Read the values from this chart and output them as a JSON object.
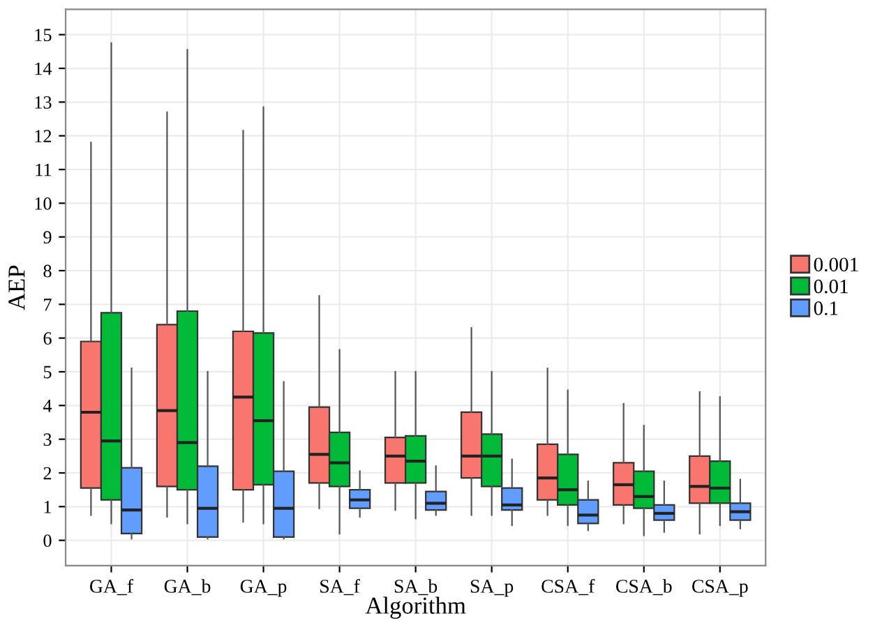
{
  "chart_data": {
    "type": "box",
    "xlabel": "Algorithm",
    "ylabel": "AEP",
    "categories": [
      "GA_f",
      "GA_b",
      "GA_p",
      "SA_f",
      "SA_b",
      "SA_p",
      "CSA_f",
      "CSA_b",
      "CSA_p"
    ],
    "ylim": [
      -0.75,
      15.75
    ],
    "yticks": [
      0,
      1,
      2,
      3,
      4,
      5,
      6,
      7,
      8,
      9,
      10,
      11,
      12,
      13,
      14,
      15
    ],
    "grid": true,
    "legend": "right",
    "series": [
      {
        "name": "0.001",
        "color": "#f8766d",
        "boxes": [
          {
            "low": 0.75,
            "q1": 1.55,
            "median": 3.8,
            "q3": 5.9,
            "high": 11.8
          },
          {
            "low": 0.7,
            "q1": 1.6,
            "median": 3.85,
            "q3": 6.4,
            "high": 12.7
          },
          {
            "low": 0.55,
            "q1": 1.5,
            "median": 4.25,
            "q3": 6.2,
            "high": 12.15
          },
          {
            "low": 0.95,
            "q1": 1.7,
            "median": 2.55,
            "q3": 3.95,
            "high": 7.25
          },
          {
            "low": 0.9,
            "q1": 1.7,
            "median": 2.5,
            "q3": 3.05,
            "high": 5.0
          },
          {
            "low": 0.75,
            "q1": 1.85,
            "median": 2.5,
            "q3": 3.8,
            "high": 6.3
          },
          {
            "low": 0.75,
            "q1": 1.2,
            "median": 1.85,
            "q3": 2.85,
            "high": 5.1
          },
          {
            "low": 0.5,
            "q1": 1.05,
            "median": 1.65,
            "q3": 2.3,
            "high": 4.05
          },
          {
            "low": 0.2,
            "q1": 1.1,
            "median": 1.6,
            "q3": 2.5,
            "high": 4.4
          }
        ]
      },
      {
        "name": "0.01",
        "color": "#00ba38",
        "boxes": [
          {
            "low": 0.5,
            "q1": 1.2,
            "median": 2.95,
            "q3": 6.75,
            "high": 14.75
          },
          {
            "low": 0.5,
            "q1": 1.5,
            "median": 2.9,
            "q3": 6.8,
            "high": 14.55
          },
          {
            "low": 0.5,
            "q1": 1.65,
            "median": 3.55,
            "q3": 6.15,
            "high": 12.85
          },
          {
            "low": 0.2,
            "q1": 1.6,
            "median": 2.3,
            "q3": 3.2,
            "high": 5.65
          },
          {
            "low": 0.65,
            "q1": 1.7,
            "median": 2.35,
            "q3": 3.1,
            "high": 5.0
          },
          {
            "low": 0.75,
            "q1": 1.6,
            "median": 2.5,
            "q3": 3.15,
            "high": 5.0
          },
          {
            "low": 0.45,
            "q1": 1.05,
            "median": 1.5,
            "q3": 2.55,
            "high": 4.45
          },
          {
            "low": 0.15,
            "q1": 0.95,
            "median": 1.3,
            "q3": 2.05,
            "high": 3.4
          },
          {
            "low": 0.45,
            "q1": 1.1,
            "median": 1.55,
            "q3": 2.35,
            "high": 4.25
          }
        ]
      },
      {
        "name": "0.1",
        "color": "#619cff",
        "boxes": [
          {
            "low": 0.05,
            "q1": 0.2,
            "median": 0.9,
            "q3": 2.15,
            "high": 5.1
          },
          {
            "low": 0.05,
            "q1": 0.1,
            "median": 0.95,
            "q3": 2.2,
            "high": 5.0
          },
          {
            "low": 0.05,
            "q1": 0.1,
            "median": 0.95,
            "q3": 2.05,
            "high": 4.7
          },
          {
            "low": 0.7,
            "q1": 0.95,
            "median": 1.2,
            "q3": 1.5,
            "high": 2.05
          },
          {
            "low": 0.75,
            "q1": 0.9,
            "median": 1.1,
            "q3": 1.45,
            "high": 2.2
          },
          {
            "low": 0.45,
            "q1": 0.9,
            "median": 1.05,
            "q3": 1.55,
            "high": 2.4
          },
          {
            "low": 0.3,
            "q1": 0.5,
            "median": 0.75,
            "q3": 1.2,
            "high": 1.75
          },
          {
            "low": 0.25,
            "q1": 0.6,
            "median": 0.8,
            "q3": 1.05,
            "high": 1.75
          },
          {
            "low": 0.35,
            "q1": 0.6,
            "median": 0.85,
            "q3": 1.1,
            "high": 1.8
          }
        ]
      }
    ]
  }
}
